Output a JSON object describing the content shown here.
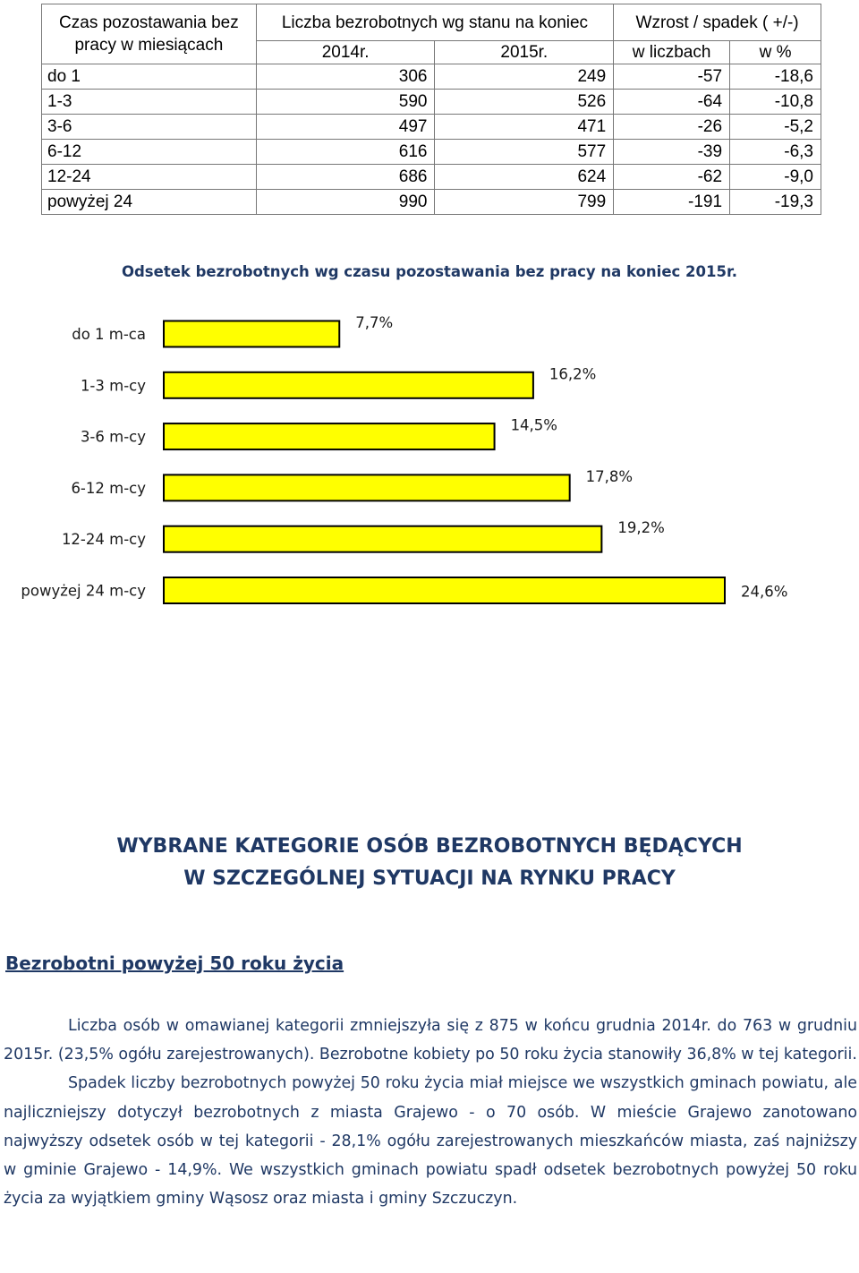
{
  "table": {
    "col_header_1": "Czas pozostawania bez pracy w miesiącach",
    "col_header_2": "Liczba bezrobotnych wg stanu na koniec",
    "col_header_3": "Wzrost / spadek ( +/-)",
    "sub_2014": "2014r.",
    "sub_2015": "2015r.",
    "sub_num": "w liczbach",
    "sub_pct": "w %",
    "rows": [
      {
        "label": "do 1",
        "y2014": "306",
        "y2015": "249",
        "diff": "-57",
        "pct": "-18,6"
      },
      {
        "label": "1-3",
        "y2014": "590",
        "y2015": "526",
        "diff": "-64",
        "pct": "-10,8"
      },
      {
        "label": "3-6",
        "y2014": "497",
        "y2015": "471",
        "diff": "-26",
        "pct": "-5,2"
      },
      {
        "label": "6-12",
        "y2014": "616",
        "y2015": "577",
        "diff": "-39",
        "pct": "-6,3"
      },
      {
        "label": "12-24",
        "y2014": "686",
        "y2015": "624",
        "diff": "-62",
        "pct": "-9,0"
      },
      {
        "label": "powyżej 24",
        "y2014": "990",
        "y2015": "799",
        "diff": "-191",
        "pct": "-19,3"
      }
    ]
  },
  "chart_data": {
    "type": "bar",
    "orientation": "horizontal",
    "title": "Odsetek bezrobotnych wg czasu pozostawania bez pracy na koniec 2015r.",
    "categories": [
      "do 1 m-ca",
      "1-3 m-cy",
      "3-6 m-cy",
      "6-12 m-cy",
      "12-24 m-cy",
      "powyżej 24 m-cy"
    ],
    "values": [
      7.7,
      16.2,
      14.5,
      17.8,
      19.2,
      24.6
    ],
    "value_labels": [
      "7,7%",
      "16,2%",
      "14,5%",
      "17,8%",
      "19,2%",
      "24,6%"
    ],
    "bar_color": "#ffff00",
    "grid": false
  },
  "section": {
    "heading_line1": "WYBRANE KATEGORIE OSÓB BEZROBOTNYCH BĘDĄCYCH",
    "heading_line2": "W SZCZEGÓLNEJ SYTUACJI NA RYNKU PRACY",
    "subheading": "Bezrobotni powyżej 50 roku życia",
    "para1": "Liczba osób w omawianej kategorii zmniejszyła się z 875 w końcu grudnia 2014r. do 763 w grudniu 2015r. (23,5% ogółu zarejestrowanych). Bezrobotne kobiety po 50 roku życia stanowiły 36,8% w tej kategorii.",
    "para2": "Spadek liczby bezrobotnych powyżej 50 roku życia miał miejsce we wszystkich gminach powiatu, ale najliczniejszy dotyczył bezrobotnych z miasta Grajewo - o 70 osób. W mieście Grajewo zanotowano najwyższy odsetek osób w tej kategorii - 28,1% ogółu zarejestrowanych mieszkańców miasta, zaś najniższy w gminie Grajewo - 14,9%. We wszystkich gminach powiatu spadł odsetek bezrobotnych powyżej 50 roku życia za wyjątkiem gminy Wąsosz oraz miasta i gminy Szczuczyn."
  },
  "colors": {
    "heading": "#1f3864",
    "bar": "#ffff00"
  }
}
